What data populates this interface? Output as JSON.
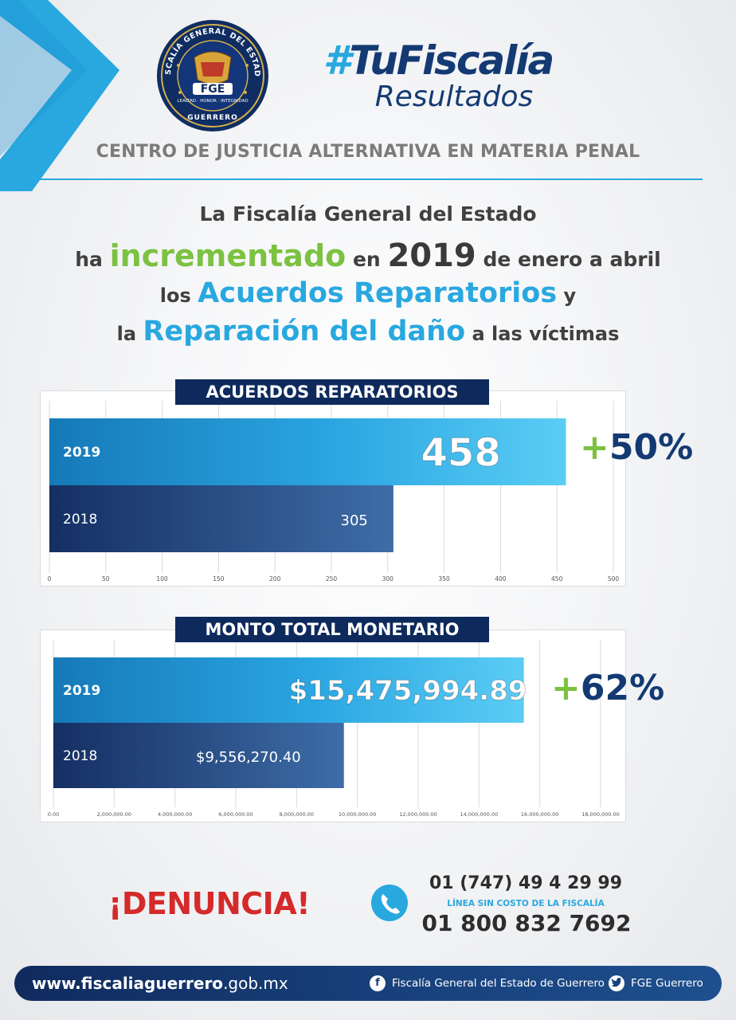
{
  "header": {
    "logo_text": {
      "ring_top": "FISCALÍA GENERAL DEL ESTADO",
      "center": "FGE",
      "ribbon": "LEALTAD · HONOR · INTEGRIDAD",
      "ring_bottom": "GUERRERO"
    },
    "hashtag_hash": "#",
    "hashtag_name": "TuFiscalía",
    "hashtag_sub": "Resultados",
    "center_title": "CENTRO DE JUSTICIA ALTERNATIVA EN MATERIA PENAL"
  },
  "headline": {
    "line1": "La Fiscalía General del Estado",
    "line2_a": "ha ",
    "line2_b": "incrementado",
    "line2_c": " en ",
    "line2_d": "2019",
    "line2_e": " de enero a abril",
    "line3_a": "los ",
    "line3_b": "Acuerdos Reparatorios",
    "line3_c": " y",
    "line4_a": "la ",
    "line4_b": "Reparación del daño",
    "line4_c": " a las víctimas"
  },
  "colors": {
    "navy": "#143a73",
    "light_blue": "#29a8df",
    "green": "#7cc242",
    "red": "#d42a2a"
  },
  "chart_data": [
    {
      "type": "bar",
      "orientation": "horizontal",
      "title": "ACUERDOS REPARATORIOS",
      "categories": [
        "2019",
        "2018"
      ],
      "values": [
        458,
        305
      ],
      "value_labels": [
        "458",
        "305"
      ],
      "xlim": [
        0,
        500
      ],
      "x_ticks": [
        "0",
        "50",
        "100",
        "150",
        "200",
        "250",
        "300",
        "350",
        "400",
        "450",
        "500"
      ],
      "grid": true,
      "annotation_plus": "+",
      "annotation_value": "50%"
    },
    {
      "type": "bar",
      "orientation": "horizontal",
      "title": "MONTO TOTAL MONETARIO",
      "categories": [
        "2019",
        "2018"
      ],
      "values": [
        15475994.89,
        9556270.4
      ],
      "value_labels": [
        "$15,475,994.89",
        "$9,556,270.40"
      ],
      "xlim": [
        0,
        18000000
      ],
      "x_ticks": [
        "0.00",
        "2,000,000.00",
        "4,000,000.00",
        "6,000,000.00",
        "8,000,000.00",
        "10,000,000.00",
        "12,000,000.00",
        "14,000,000.00",
        "16,000,000.00",
        "18,000,000.00"
      ],
      "grid": true,
      "annotation_plus": "+",
      "annotation_value": "62%"
    }
  ],
  "contact": {
    "denuncia": "¡DENUNCIA!",
    "phone_icon": "phone-icon",
    "phone1": "01 (747) 49 4 29 99",
    "hotline_label": "LÍNEA SIN COSTO DE LA FISCALÍA",
    "phone2": "01 800 832 7692"
  },
  "footer": {
    "website_bold": "www.fiscaliaguerrero",
    "website_rest": ".gob.mx",
    "facebook_icon": "facebook-icon",
    "facebook_label": "Fiscalía General del Estado de Guerrero",
    "twitter_icon": "twitter-icon",
    "twitter_label": "FGE Guerrero"
  }
}
